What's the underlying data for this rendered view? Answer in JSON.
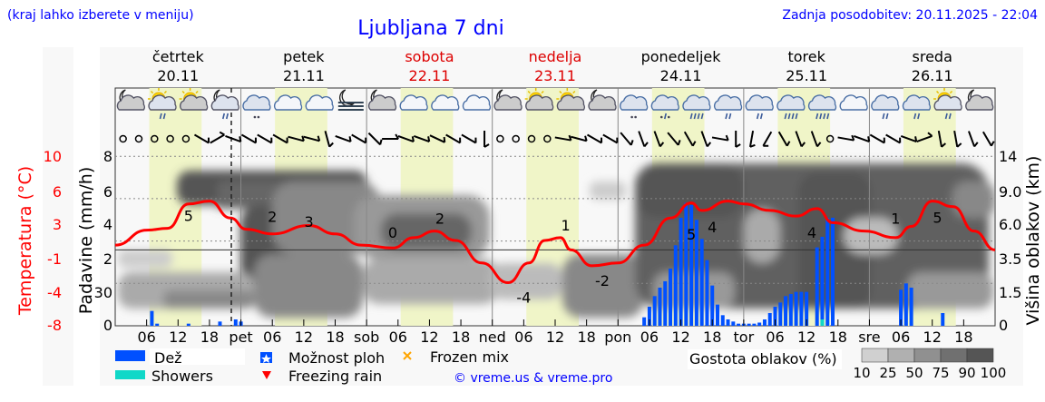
{
  "header": {
    "hint": "(kraj lahko izberete v meniju)",
    "title": "Ljubljana 7 dni",
    "updated": "Zadnja posodobitev: 20.11.2025 - 22:04"
  },
  "days": [
    {
      "name": "četrtek",
      "date": "20.11",
      "weekend": false
    },
    {
      "name": "petek",
      "date": "21.11",
      "weekend": false
    },
    {
      "name": "sobota",
      "date": "22.11",
      "weekend": true
    },
    {
      "name": "nedelja",
      "date": "23.11",
      "weekend": true
    },
    {
      "name": "ponedeljek",
      "date": "24.11",
      "weekend": false
    },
    {
      "name": "torek",
      "date": "25.11",
      "weekend": false
    },
    {
      "name": "sreda",
      "date": "26.11",
      "weekend": false
    }
  ],
  "weather_icons": [
    "night-cloud",
    "sun-cloud-rain",
    "sun-cloud",
    "night-cloud-rain",
    "cloud-snow",
    "cloud",
    "cloud",
    "night-fog",
    "night-cloud",
    "cloud",
    "cloud",
    "cloud",
    "night-cloud",
    "sun-cloud",
    "sun-cloud",
    "night-cloud",
    "cloud-snow",
    "cloud-sleet",
    "cloud-rain-heavy",
    "cloud-rain",
    "cloud-rain",
    "cloud-rain-heavy",
    "cloud-rain-heavy",
    "cloud",
    "cloud-rain",
    "cloud-rain",
    "sun-cloud-rain",
    "night-cloud"
  ],
  "wind_directions_deg": [
    null,
    null,
    null,
    null,
    null,
    300,
    240,
    290,
    300,
    300,
    300,
    285,
    285,
    345,
    290,
    300,
    315,
    270,
    290,
    290,
    295,
    300,
    300,
    0,
    null,
    null,
    null,
    null,
    280,
    285,
    300,
    300,
    320,
    340,
    340,
    320,
    330,
    340,
    280,
    0,
    10,
    30,
    330,
    340,
    340,
    null,
    280,
    290,
    300,
    300,
    290,
    250,
    350,
    350,
    340,
    330
  ],
  "colors": {
    "temperature": "#ff0000",
    "rain": "#0050ff",
    "showers": "#10d8c8",
    "daylight": "#f0f5c8",
    "title": "#0000ff",
    "weekend": "#dd0000"
  },
  "chart_data": {
    "type": "line",
    "title": "Ljubljana 7 dni",
    "x_tick_labels": [
      "06",
      "12",
      "18",
      "pet",
      "06",
      "12",
      "18",
      "sob",
      "06",
      "12",
      "18",
      "ned",
      "06",
      "12",
      "18",
      "pon",
      "06",
      "12",
      "18",
      "tor",
      "06",
      "12",
      "18",
      "sre",
      "06",
      "12",
      "18"
    ],
    "x_unit_hours_range": [
      0,
      168
    ],
    "now_hour": 22.2,
    "axes": {
      "temperature": {
        "label": "Temperatura (°C)",
        "ticks": [
          "10",
          "6",
          "3",
          "-1",
          "-4",
          "-8"
        ],
        "range": [
          -8,
          10
        ]
      },
      "precipitation": {
        "label": "Padavine (mm/h)",
        "ticks": [
          "8",
          "6",
          "4",
          "2",
          "30",
          "0"
        ],
        "range": [
          0,
          8
        ]
      },
      "cloud_height": {
        "label": "Višina oblakov (km)",
        "ticks": [
          "14",
          "9.0",
          "6.0",
          "3.5",
          "1.5",
          "0"
        ]
      }
    },
    "temperature": {
      "hours": [
        0,
        6,
        10,
        14,
        18,
        22,
        25,
        30,
        37,
        42,
        47,
        53,
        57,
        61,
        65,
        70,
        75,
        79,
        82,
        85,
        87,
        91,
        96,
        101,
        106,
        110,
        112,
        117,
        120,
        125,
        130,
        134,
        137,
        143,
        149,
        152,
        156,
        160,
        164,
        168
      ],
      "values": [
        0.5,
        2.1,
        2.3,
        4.9,
        5.2,
        3.4,
        2.2,
        1.7,
        2.6,
        1.7,
        0.5,
        0.2,
        1.3,
        2.0,
        1.0,
        -1.4,
        -3.5,
        -1.4,
        1.0,
        1.3,
        0.0,
        -1.7,
        -1.4,
        0.5,
        3.4,
        5.0,
        4.2,
        5.2,
        4.9,
        4.2,
        3.6,
        4.4,
        2.9,
        2.0,
        1.3,
        2.5,
        5.2,
        4.6,
        2.0,
        0.0
      ]
    },
    "temperature_labels": [
      {
        "hour": 14,
        "text": "5"
      },
      {
        "hour": 30,
        "text": "2"
      },
      {
        "hour": 37,
        "text": "3"
      },
      {
        "hour": 53,
        "text": "0"
      },
      {
        "hour": 62,
        "text": "2"
      },
      {
        "hour": 78,
        "text": "-4"
      },
      {
        "hour": 86,
        "text": "1"
      },
      {
        "hour": 93,
        "text": "-2"
      },
      {
        "hour": 110,
        "text": "5"
      },
      {
        "hour": 114,
        "text": "4"
      },
      {
        "hour": 133,
        "text": "4"
      },
      {
        "hour": 149,
        "text": "1"
      },
      {
        "hour": 157,
        "text": "5"
      }
    ],
    "rain": {
      "hours": [
        7,
        8,
        14,
        20,
        23,
        24,
        101,
        102,
        103,
        104,
        105,
        106,
        107,
        108,
        109,
        110,
        111,
        112,
        113,
        114,
        115,
        116,
        117,
        118,
        119,
        120,
        121,
        122,
        123,
        124,
        125,
        126,
        127,
        128,
        129,
        130,
        131,
        132,
        134,
        135,
        136,
        137,
        150,
        151,
        152,
        158
      ],
      "values": [
        0.7,
        0.1,
        0.1,
        0.2,
        0.3,
        0.2,
        0.4,
        0.9,
        1.4,
        1.8,
        2.1,
        2.7,
        3.8,
        5.1,
        5.8,
        5.7,
        5.0,
        4.1,
        3.1,
        1.9,
        1.0,
        0.5,
        0.3,
        0.2,
        0.1,
        0.1,
        0.1,
        0.1,
        0.15,
        0.3,
        0.6,
        0.9,
        1.1,
        1.4,
        1.5,
        1.6,
        1.6,
        1.6,
        3.7,
        4.2,
        5.1,
        5.1,
        1.7,
        2.0,
        1.8,
        0.6
      ]
    },
    "showers": {
      "hours": [
        135
      ],
      "values": [
        0.3
      ]
    },
    "cloud_density_legend": {
      "label": "Gostota oblakov (%)",
      "levels": [
        "10",
        "25",
        "50",
        "75",
        "90",
        "100"
      ],
      "colors": [
        "#d0d0d0",
        "#b0b0b0",
        "#909090",
        "#707070",
        "#555555"
      ]
    }
  },
  "legend": {
    "rain": "Dež",
    "showers": "Showers",
    "shower_chance": "Možnost ploh",
    "freezing_rain": "Freezing rain",
    "frozen_mix": "Frozen mix",
    "credit": "© vreme.us & vreme.pro"
  }
}
